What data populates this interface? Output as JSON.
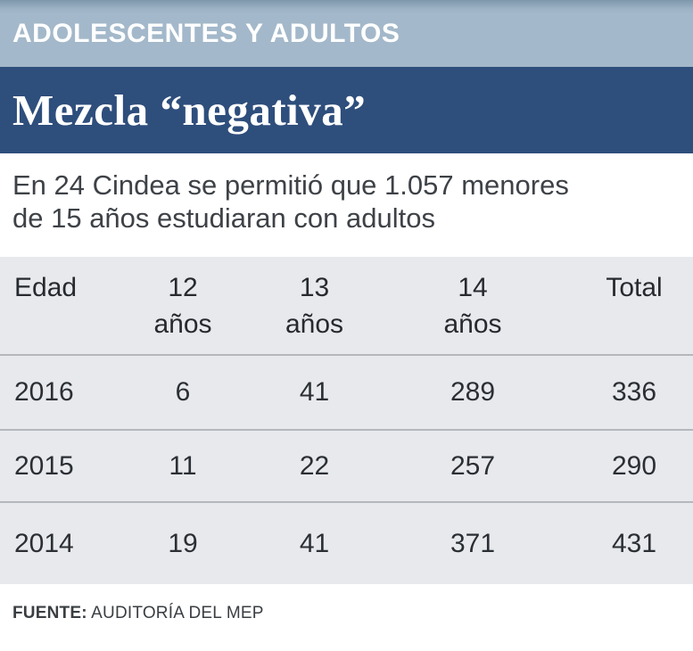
{
  "palette": {
    "band_light": "#a3b8ca",
    "band_light_top_edge": "#7e97ac",
    "band_navy": "#2e4e7c",
    "table_background": "#e7e9ed",
    "row_separator": "#b4b8bc",
    "text_dark": "#2b2f34",
    "text_white": "#ffffff"
  },
  "banner": {
    "label": "ADOLESCENTES Y ADULTOS"
  },
  "title": {
    "text": "Mezcla “negativa”"
  },
  "subtitle": {
    "line1": "En 24 Cindea se permitió que 1.057 menores",
    "line2": "de 15 años estudiaran con adultos"
  },
  "table": {
    "header": {
      "edad": "Edad",
      "col12_num": "12",
      "col12_word": "años",
      "col13_num": "13",
      "col13_word": "años",
      "col14_num": "14",
      "col14_word": "años",
      "total": "Total"
    },
    "rows": [
      {
        "year": "2016",
        "age12": "6",
        "age13": "41",
        "age14": "289",
        "total": "336"
      },
      {
        "year": "2015",
        "age12": "11",
        "age13": "22",
        "age14": "257",
        "total": "290"
      },
      {
        "year": "2014",
        "age12": "19",
        "age13": "41",
        "age14": "371",
        "total": "431"
      }
    ]
  },
  "source": {
    "label": "FUENTE:",
    "value": "AUDITORÍA DEL MEP"
  },
  "chart_data": {
    "type": "table",
    "kicker": "ADOLESCENTES Y ADULTOS",
    "title": "Mezcla “negativa”",
    "subtitle": "En 24 Cindea se permitió que 1.057 menores de 15 años estudiaran con adultos",
    "columns": [
      "Edad",
      "12 años",
      "13 años",
      "14 años",
      "Total"
    ],
    "rows": [
      [
        "2016",
        6,
        41,
        289,
        336
      ],
      [
        "2015",
        11,
        22,
        257,
        290
      ],
      [
        "2014",
        19,
        41,
        371,
        431
      ]
    ],
    "source": "FUENTE: AUDITORÍA DEL MEP"
  }
}
